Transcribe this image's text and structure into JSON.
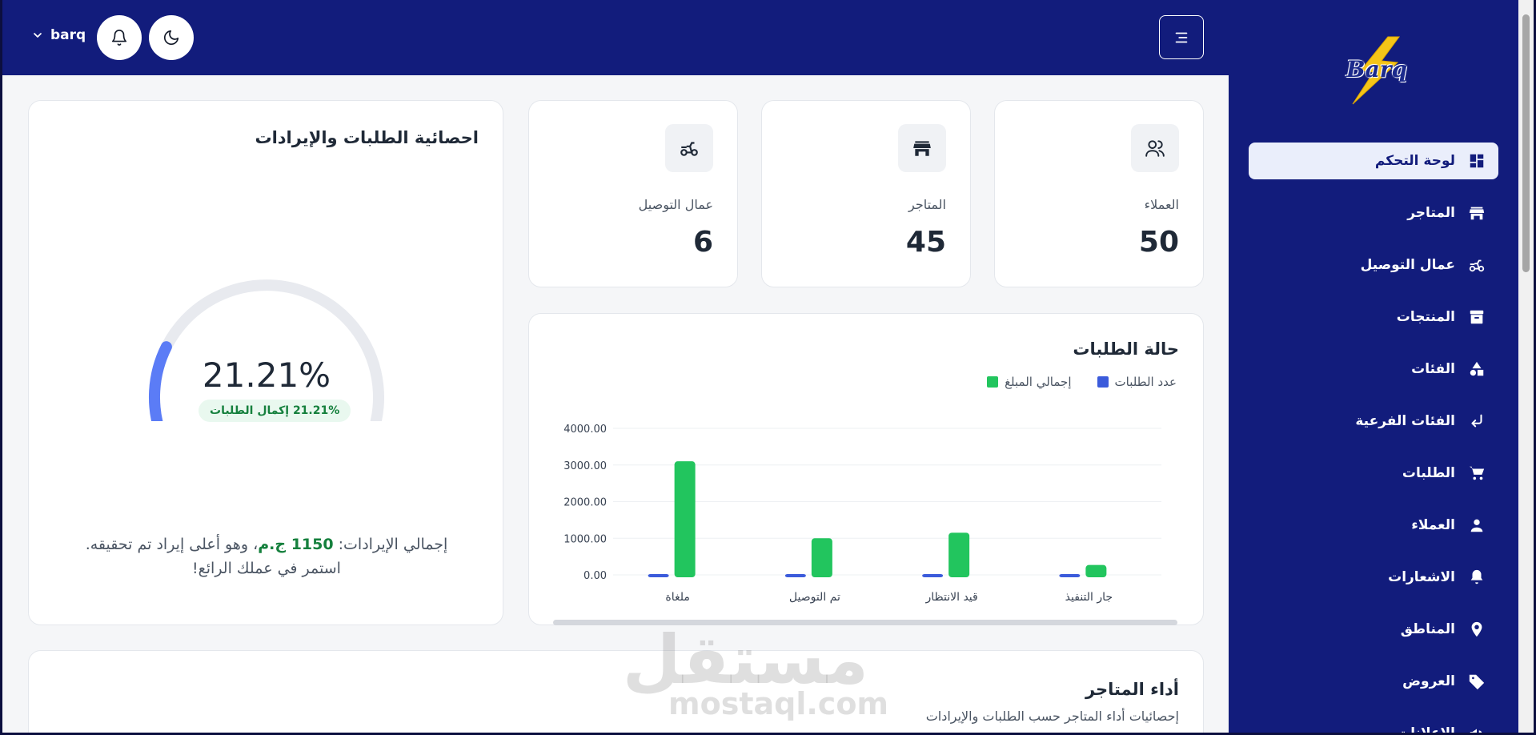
{
  "header": {
    "username": "barq"
  },
  "brand": {
    "logo_text": "Barq"
  },
  "sidebar": {
    "items": [
      {
        "label": "لوحة التحكم",
        "icon": "dashboard-icon"
      },
      {
        "label": "المتاجر",
        "icon": "store-icon"
      },
      {
        "label": "عمال التوصيل",
        "icon": "delivery-scooter-icon"
      },
      {
        "label": "المنتجات",
        "icon": "archive-box-icon"
      },
      {
        "label": "الفئات",
        "icon": "shapes-icon"
      },
      {
        "label": "الفئات الفرعية",
        "icon": "subdirectory-arrow-icon"
      },
      {
        "label": "الطلبات",
        "icon": "cart-icon"
      },
      {
        "label": "العملاء",
        "icon": "person-icon"
      },
      {
        "label": "الاشعارات",
        "icon": "bell-icon"
      },
      {
        "label": "المناطق",
        "icon": "location-pin-icon"
      },
      {
        "label": "العروض",
        "icon": "tag-icon"
      },
      {
        "label": "الإعلانات",
        "icon": "megaphone-icon"
      }
    ]
  },
  "stats": {
    "customers": {
      "label": "العملاء",
      "value": "50",
      "icon": "users-icon"
    },
    "stores": {
      "label": "المتاجر",
      "value": "45",
      "icon": "store-icon"
    },
    "drivers": {
      "label": "عمال التوصيل",
      "value": "6",
      "icon": "delivery-scooter-icon"
    }
  },
  "revenue_card": {
    "title": "احصائية الطلبات والإيرادات",
    "percent_text": "21.21%",
    "percent_value": 21.21,
    "badge": "21.21% إكمال الطلبات",
    "total_prefix": "إجمالي الإيرادات: ",
    "total_amount": "1150 ج.م",
    "total_suffix": "، وهو أعلى إيراد تم تحقيقه.",
    "line2": "استمر في عملك الرائع!"
  },
  "orders_card": {
    "title": "حالة الطلبات"
  },
  "chart_data": {
    "type": "bar",
    "categories": [
      "جار التنفيذ",
      "قيد الانتظار",
      "تم التوصيل",
      "ملغاة"
    ],
    "series": [
      {
        "name": "إجمالي المبلغ",
        "values": [
          270,
          1150,
          1000,
          3100
        ],
        "color": "#22c55e"
      },
      {
        "name": "عدد الطلبات",
        "values": [
          2,
          3,
          2,
          4
        ],
        "color": "#3b5bdb"
      }
    ],
    "yticks": [
      "4000.00",
      "3000.00",
      "2000.00",
      "1000.00",
      "0.00"
    ],
    "ylim": [
      0,
      4000
    ],
    "legend_position": "top-right",
    "grid": true,
    "horizontal_scroll": true
  },
  "stores_card": {
    "title": "أداء المتاجر",
    "subtitle": "إحصائيات أداء المتاجر حسب الطلبات والإيرادات"
  },
  "watermark": {
    "ar": "مستقل",
    "en": "mostaql.com"
  }
}
